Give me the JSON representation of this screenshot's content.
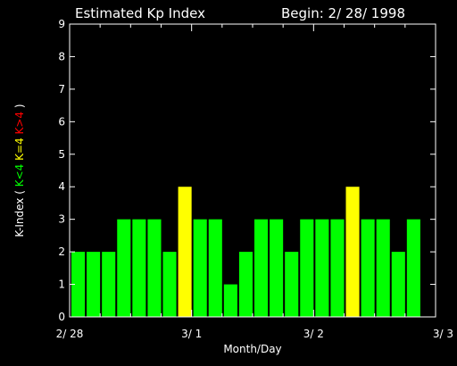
{
  "chart_data": {
    "type": "bar",
    "title_left": "Estimated Kp Index",
    "title_right": "Begin: 2/ 28/ 1998",
    "xlabel": "Month/Day",
    "ylabel": {
      "prefix": "K-Index (",
      "green": "K<4",
      "yellow": "K=4",
      "red": "K>4",
      "suffix": ")"
    },
    "ylim": [
      0,
      9
    ],
    "yticks": [
      "0",
      "1",
      "2",
      "3",
      "4",
      "5",
      "6",
      "7",
      "8",
      "9"
    ],
    "x_tick_labels": [
      "2/ 28",
      "3/ 1",
      "3/ 2",
      "3/ 3"
    ],
    "x_days_span": 3,
    "bars_per_day": 8,
    "values": [
      2,
      2,
      2,
      3,
      3,
      3,
      2,
      4,
      3,
      3,
      1,
      2,
      3,
      3,
      2,
      3,
      3,
      3,
      4,
      3,
      3,
      2,
      3
    ],
    "colors": {
      "below": "#00ff00",
      "equal": "#ffff00",
      "above": "#ff0000",
      "background": "#000000",
      "axes": "#ffffff"
    }
  }
}
